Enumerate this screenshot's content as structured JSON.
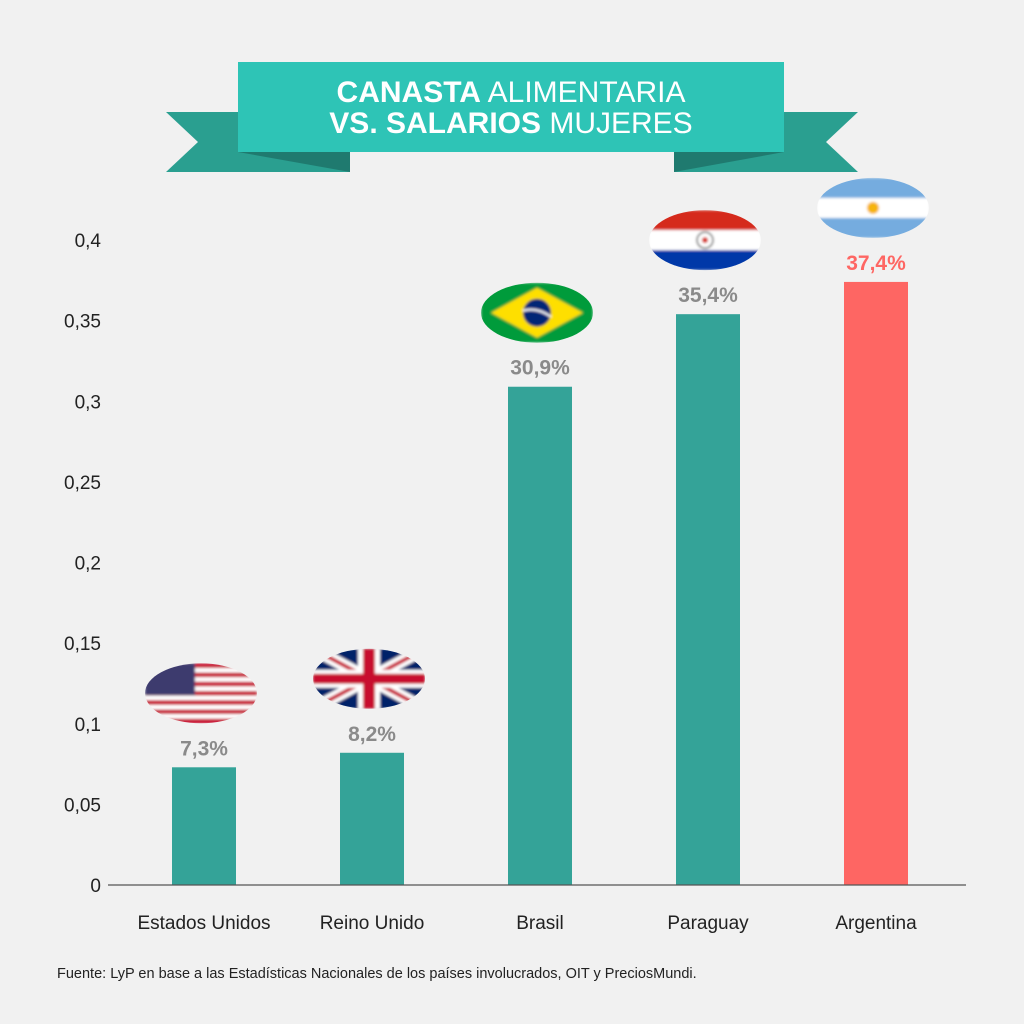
{
  "title": {
    "line1_bold": "CANASTA",
    "line1_rest": "ALIMENTARIA",
    "line2_bold": "VS. SALARIOS",
    "line2_rest": "MUJERES"
  },
  "source": "Fuente: LyP en base a las Estadísticas Nacionales de los países involucrados, OIT y PreciosMundi.",
  "colors": {
    "bar": "#34a398",
    "highlight": "#fe6663",
    "ribbon": "#2ec4b6",
    "ribbon_tail": "#2a9f90",
    "label": "#8a8a8a"
  },
  "chart_data": {
    "type": "bar",
    "title": "CANASTA ALIMENTARIA VS. SALARIOS MUJERES",
    "categories": [
      "Estados Unidos",
      "Reino Unido",
      "Brasil",
      "Paraguay",
      "Argentina"
    ],
    "values": [
      0.073,
      0.082,
      0.309,
      0.354,
      0.374
    ],
    "data_labels": [
      "7,3%",
      "8,2%",
      "30,9%",
      "35,4%",
      "37,4%"
    ],
    "flags": [
      "us-flag",
      "uk-flag",
      "brazil-flag",
      "paraguay-flag",
      "argentina-flag"
    ],
    "highlight": "Argentina",
    "yticks": [
      "0",
      "0,05",
      "0,1",
      "0,15",
      "0,2",
      "0,25",
      "0,3",
      "0,35",
      "0,4"
    ],
    "ylim": [
      0,
      0.4
    ],
    "grid": false,
    "xlabel": "",
    "ylabel": ""
  }
}
